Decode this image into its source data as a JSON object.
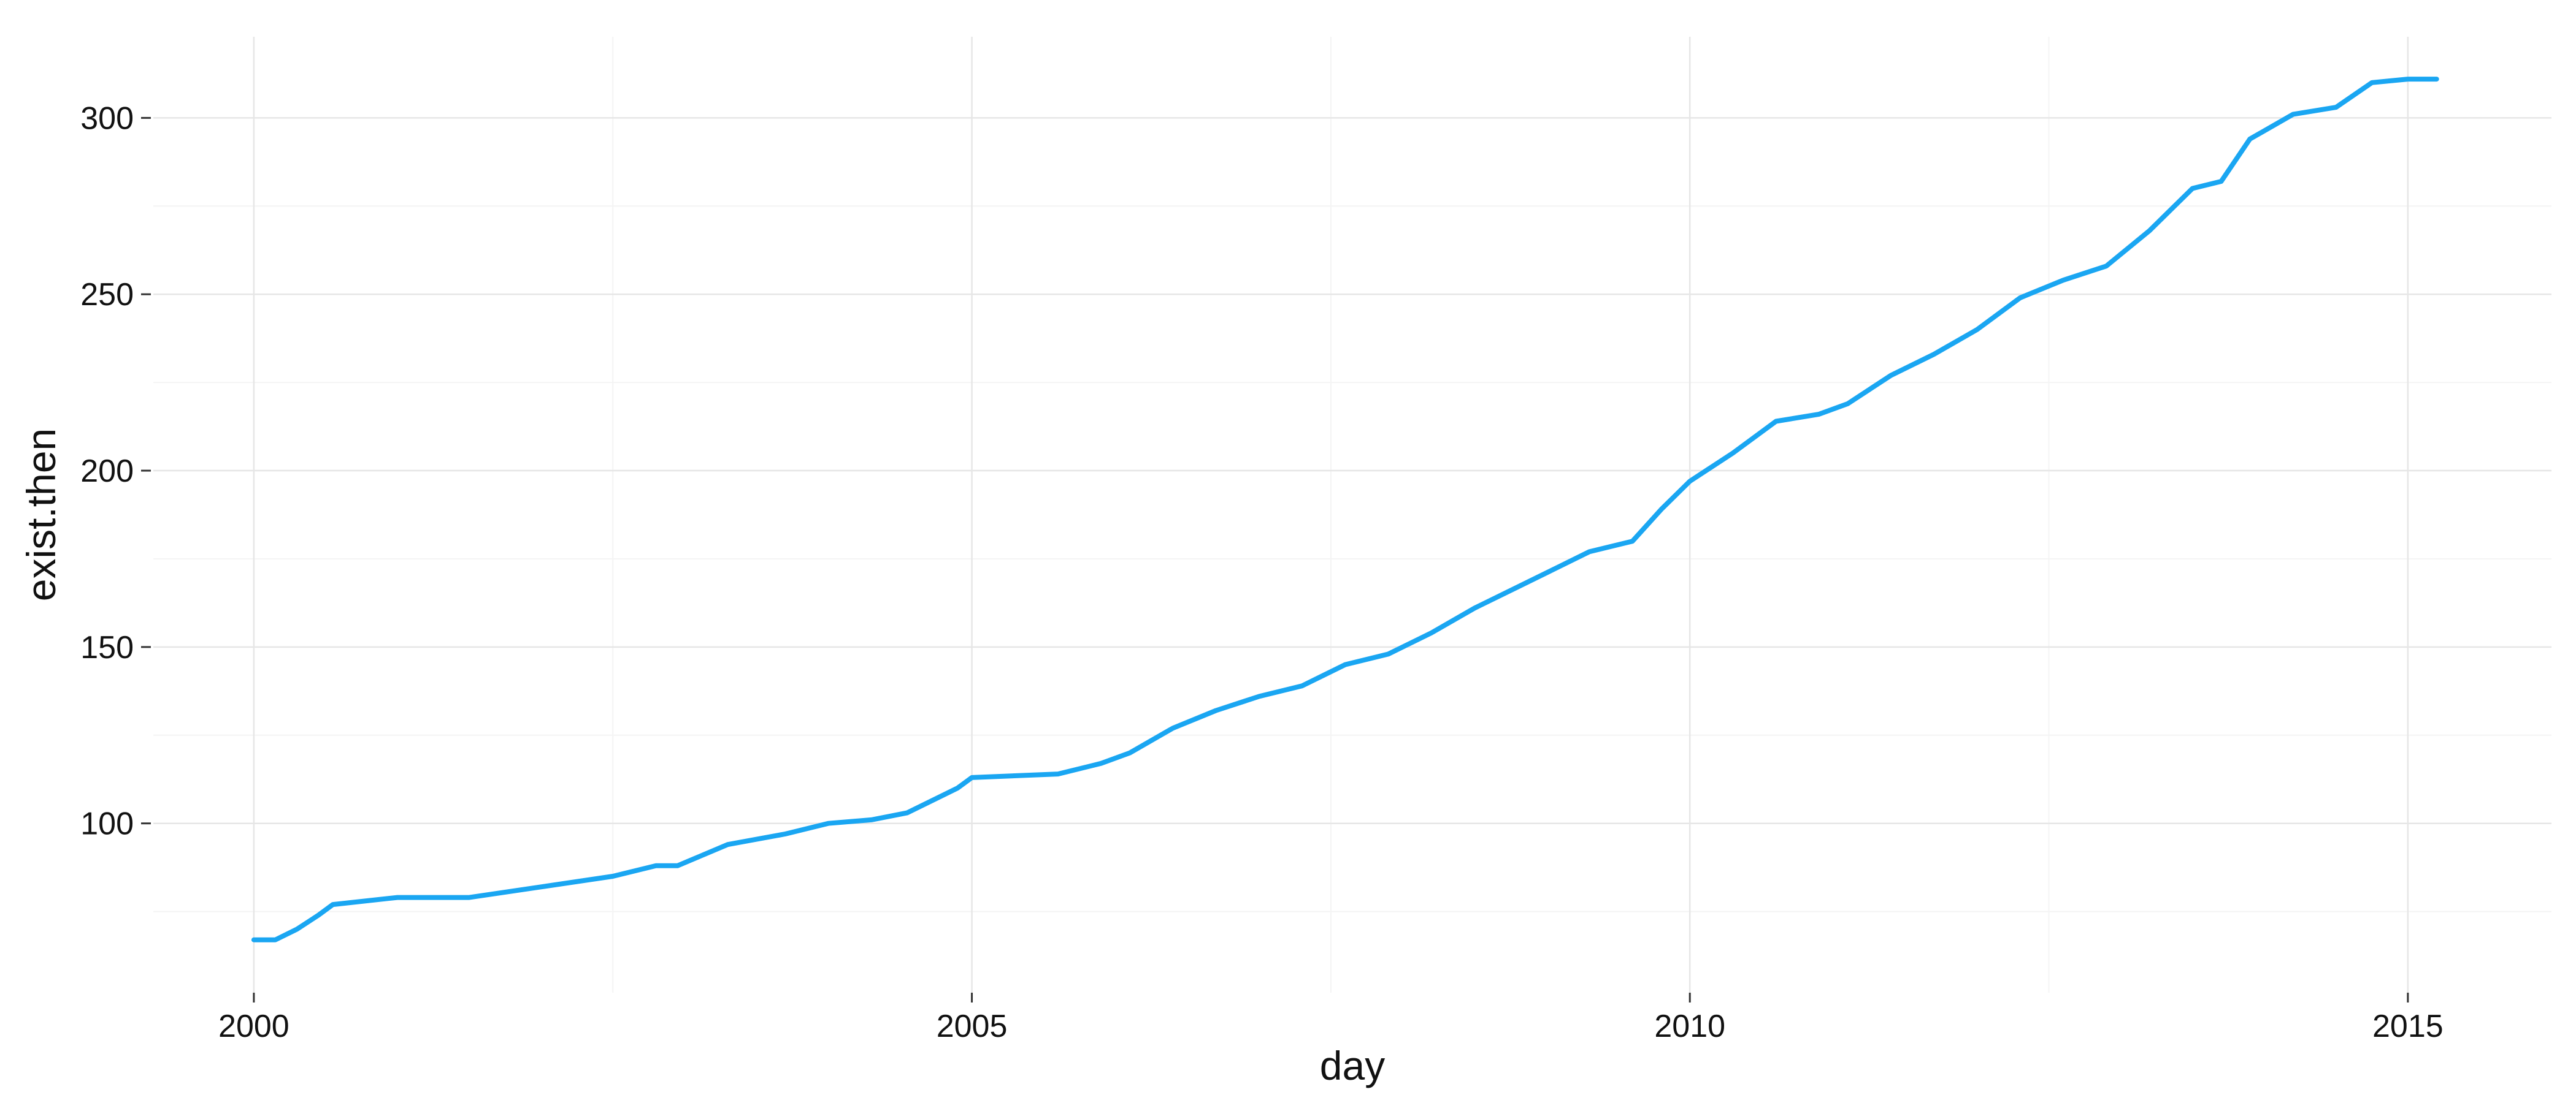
{
  "chart_data": {
    "type": "line",
    "xlabel": "day",
    "ylabel": "exist.then",
    "x_ticks": [
      2000,
      2005,
      2010,
      2015
    ],
    "y_ticks": [
      100,
      150,
      200,
      250,
      300
    ],
    "xlim": [
      1999.3,
      2016.0
    ],
    "ylim": [
      52,
      323
    ],
    "grid": true,
    "legend": "none",
    "line_color": "#1AA6F2",
    "series": [
      {
        "x": [
          2000.0,
          2000.15,
          2000.3,
          2000.45,
          2000.55,
          2001.0,
          2001.5,
          2002.0,
          2002.5,
          2002.8,
          2002.95,
          2003.3,
          2003.7,
          2004.0,
          2004.3,
          2004.55,
          2004.9,
          2005.0,
          2005.6,
          2005.9,
          2006.1,
          2006.4,
          2006.7,
          2007.0,
          2007.3,
          2007.6,
          2007.9,
          2008.2,
          2008.5,
          2008.8,
          2009.0,
          2009.3,
          2009.6,
          2009.8,
          2010.0,
          2010.3,
          2010.6,
          2010.9,
          2011.1,
          2011.4,
          2011.7,
          2012.0,
          2012.3,
          2012.6,
          2012.9,
          2013.2,
          2013.5,
          2013.7,
          2013.9,
          2014.2,
          2014.5,
          2014.75,
          2015.0,
          2015.2
        ],
        "y": [
          67,
          67,
          70,
          74,
          77,
          79,
          79,
          82,
          85,
          88,
          88,
          94,
          97,
          100,
          101,
          103,
          110,
          113,
          114,
          117,
          120,
          127,
          132,
          136,
          139,
          145,
          148,
          154,
          161,
          167,
          171,
          177,
          180,
          189,
          197,
          205,
          214,
          216,
          219,
          227,
          233,
          240,
          249,
          254,
          258,
          268,
          280,
          282,
          294,
          301,
          303,
          310,
          311,
          311
        ]
      }
    ]
  }
}
